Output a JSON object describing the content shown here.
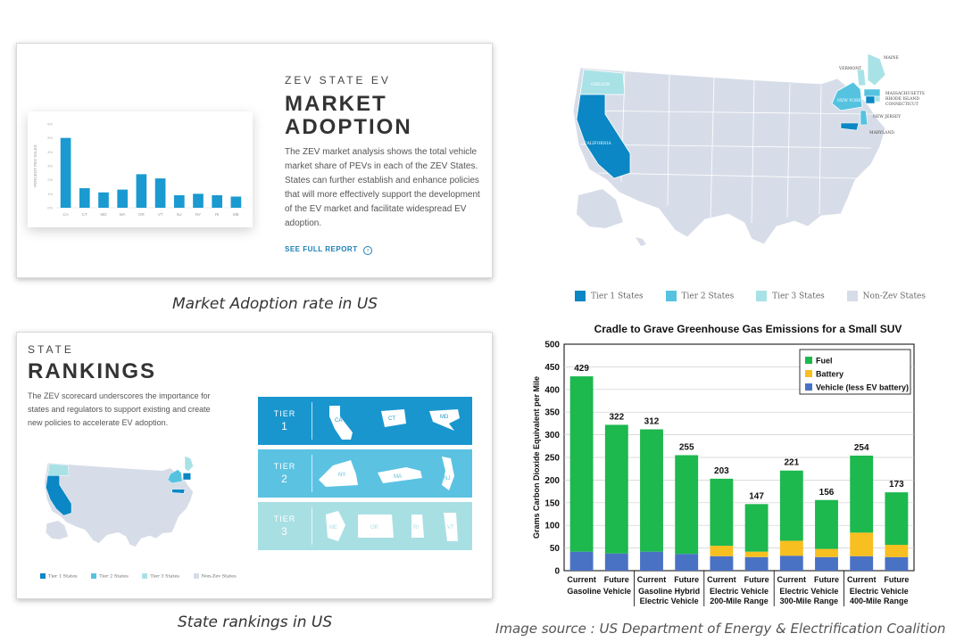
{
  "market_card": {
    "kicker": "ZEV STATE EV",
    "headline_1": "MARKET",
    "headline_2": "ADOPTION",
    "body": "The ZEV market analysis shows the total vehicle market share of PEVs in each of the ZEV States. States can further establish and enhance policies that will more effectively support the development of the EV market and facilitate widespread EV adoption.",
    "link": "SEE FULL REPORT",
    "mini_chart": {
      "ylabel": "PERCENT PEV SALES",
      "categories": [
        "CA",
        "CT",
        "MD",
        "MA",
        "OR",
        "VT",
        "NJ",
        "NY",
        "RI",
        "ME"
      ],
      "values": [
        5.0,
        1.4,
        1.1,
        1.3,
        2.4,
        2.1,
        0.9,
        1.0,
        0.9,
        0.8
      ],
      "ymax": 6,
      "yticks": [
        "0%",
        "1%",
        "2%",
        "3%",
        "4%",
        "5%",
        "6%"
      ],
      "color": "#1a9ad0"
    },
    "caption": "Market Adoption rate in US"
  },
  "map_top": {
    "labels": {
      "oregon": "OREGON",
      "california": "CALIFORNIA",
      "new_york": "NEW YORK",
      "vermont": "VERMONT",
      "maine": "MAINE",
      "massachusetts": "MASSACHUSETTS",
      "rhode_island": "RHODE ISLAND",
      "connecticut": "CONNECTICUT",
      "new_jersey": "NEW JERSEY",
      "maryland": "MARYLAND"
    },
    "legend": [
      "Tier 1 States",
      "Tier 2 States",
      "Tier 3 States",
      "Non-Zev States"
    ],
    "colors": {
      "tier1": "#0a87c4",
      "tier2": "#55c3e0",
      "tier3": "#a9e2e6",
      "non": "#d7dde8"
    }
  },
  "rankings_card": {
    "kicker": "STATE",
    "headline": "RANKINGS",
    "body": "The ZEV scorecard underscores the importance for states and regulators to support existing and create new policies to accelerate EV adoption.",
    "tiers": [
      {
        "label": "TIER",
        "num": "1",
        "states": [
          "CA",
          "CT",
          "MD"
        ],
        "color": "#1a96cf"
      },
      {
        "label": "TIER",
        "num": "2",
        "states": [
          "NY",
          "MA",
          "NJ"
        ],
        "color": "#5bc2e2"
      },
      {
        "label": "TIER",
        "num": "3",
        "states": [
          "ME",
          "OR",
          "RI",
          "VT"
        ],
        "color": "#a8dfe3"
      }
    ],
    "legend": [
      "Tier 1 States",
      "Tier 2 States",
      "Tier 3 States",
      "Non-Zev States"
    ],
    "caption": "State rankings in US"
  },
  "chart_data": {
    "type": "bar",
    "stacked": true,
    "title": "Cradle to Grave Greenhouse Gas Emissions for a Small SUV",
    "ylabel": "Grams Carbon Dioxide Equivalent per Mile",
    "ylim": [
      0,
      500
    ],
    "yticks": [
      0,
      50,
      100,
      150,
      200,
      250,
      300,
      350,
      400,
      450,
      500
    ],
    "categories": [
      "Current",
      "Future",
      "Current",
      "Future",
      "Current",
      "Future",
      "Current",
      "Future",
      "Current",
      "Future"
    ],
    "groups": [
      {
        "name": "Gasoline Vehicle",
        "line2": ""
      },
      {
        "name": "Gasoline Hybrid",
        "line2": "Electric Vehicle"
      },
      {
        "name": "Electric Vehicle",
        "line2": "200-Mile Range"
      },
      {
        "name": "Electric Vehicle",
        "line2": "300-Mile Range"
      },
      {
        "name": "Electric Vehicle",
        "line2": "400-Mile Range"
      }
    ],
    "series": [
      {
        "name": "Vehicle (less EV battery)",
        "color": "#4a72c4",
        "values": [
          42,
          38,
          42,
          37,
          32,
          30,
          33,
          30,
          32,
          30
        ]
      },
      {
        "name": "Battery",
        "color": "#f7bf1f",
        "values": [
          0,
          0,
          0,
          0,
          23,
          12,
          33,
          18,
          52,
          27
        ]
      },
      {
        "name": "Fuel",
        "color": "#1db84e",
        "values": [
          387,
          284,
          270,
          218,
          148,
          105,
          155,
          108,
          170,
          116
        ]
      }
    ],
    "totals": [
      429,
      322,
      312,
      255,
      203,
      147,
      221,
      156,
      254,
      173
    ],
    "legend_order": [
      "Fuel",
      "Battery",
      "Vehicle (less EV battery)"
    ],
    "legend_position": "top-right"
  },
  "source_caption": "Image source : US Department of Energy & Electrification Coalition"
}
